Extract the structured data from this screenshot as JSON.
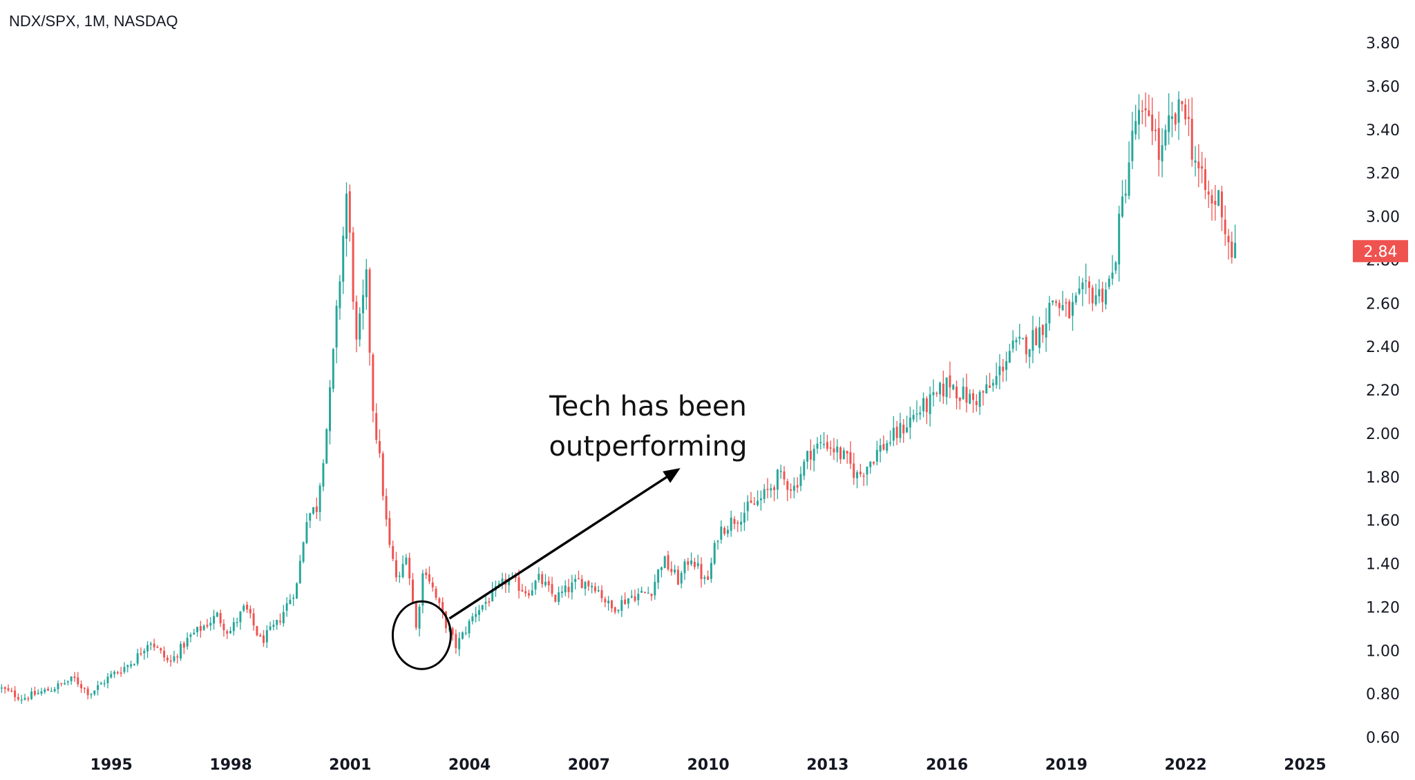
{
  "chart_data": {
    "type": "candlestick",
    "title": "NDX/SPX, 1M, NASDAQ",
    "xlabel": "",
    "ylabel": "",
    "ylim": [
      0.6,
      3.8
    ],
    "xlim": [
      1992.2,
      2026.2
    ],
    "y_ticks": [
      "3.80",
      "3.60",
      "3.40",
      "3.20",
      "3.00",
      "2.80",
      "2.60",
      "2.40",
      "2.20",
      "2.00",
      "1.80",
      "1.60",
      "1.40",
      "1.20",
      "1.00",
      "0.80",
      "0.60"
    ],
    "x_ticks": [
      "1995",
      "1998",
      "2001",
      "2004",
      "2007",
      "2010",
      "2013",
      "2016",
      "2019",
      "2022",
      "2025"
    ],
    "last_value": "2.84",
    "colors": {
      "up": "#26a69a",
      "down": "#ef5350",
      "label_bg": "#ef5350",
      "text": "#131722",
      "annotation": "#000000"
    },
    "annotation": {
      "lines": [
        "Tech has been",
        "outperforming"
      ],
      "circle_center": [
        2002.8,
        1.07
      ],
      "arrow_from": [
        2002.8,
        1.15
      ],
      "arrow_to": [
        2009.3,
        1.84
      ]
    },
    "anchors": [
      [
        1992.2,
        0.83
      ],
      [
        1992.8,
        0.78
      ],
      [
        1993.5,
        0.82
      ],
      [
        1994.1,
        0.87
      ],
      [
        1994.5,
        0.8
      ],
      [
        1995.0,
        0.88
      ],
      [
        1995.6,
        0.95
      ],
      [
        1996.0,
        1.05
      ],
      [
        1996.5,
        0.94
      ],
      [
        1997.0,
        1.06
      ],
      [
        1997.7,
        1.16
      ],
      [
        1998.0,
        1.08
      ],
      [
        1998.4,
        1.2
      ],
      [
        1998.8,
        1.04
      ],
      [
        1999.2,
        1.12
      ],
      [
        1999.7,
        1.3
      ],
      [
        1999.95,
        1.62
      ],
      [
        2000.2,
        1.66
      ],
      [
        2000.5,
        2.1
      ],
      [
        2000.75,
        2.65
      ],
      [
        2000.95,
        3.1
      ],
      [
        2001.05,
        2.85
      ],
      [
        2001.2,
        2.4
      ],
      [
        2001.45,
        2.7
      ],
      [
        2001.6,
        2.15
      ],
      [
        2001.8,
        1.85
      ],
      [
        2002.0,
        1.5
      ],
      [
        2002.25,
        1.3
      ],
      [
        2002.45,
        1.46
      ],
      [
        2002.7,
        1.1
      ],
      [
        2002.9,
        1.4
      ],
      [
        2003.2,
        1.24
      ],
      [
        2003.45,
        1.12
      ],
      [
        2003.7,
        1.02
      ],
      [
        2003.9,
        1.08
      ],
      [
        2004.2,
        1.18
      ],
      [
        2004.6,
        1.25
      ],
      [
        2005.0,
        1.33
      ],
      [
        2005.5,
        1.27
      ],
      [
        2005.8,
        1.33
      ],
      [
        2006.2,
        1.24
      ],
      [
        2006.8,
        1.32
      ],
      [
        2007.2,
        1.3
      ],
      [
        2007.6,
        1.19
      ],
      [
        2008.1,
        1.25
      ],
      [
        2008.6,
        1.27
      ],
      [
        2008.9,
        1.42
      ],
      [
        2009.3,
        1.32
      ],
      [
        2009.6,
        1.44
      ],
      [
        2010.0,
        1.3
      ],
      [
        2010.3,
        1.55
      ],
      [
        2010.8,
        1.62
      ],
      [
        2011.4,
        1.7
      ],
      [
        2011.8,
        1.8
      ],
      [
        2012.2,
        1.75
      ],
      [
        2012.6,
        1.92
      ],
      [
        2013.0,
        1.96
      ],
      [
        2013.5,
        1.88
      ],
      [
        2013.8,
        1.8
      ],
      [
        2014.3,
        1.92
      ],
      [
        2014.8,
        2.0
      ],
      [
        2015.3,
        2.1
      ],
      [
        2015.7,
        2.15
      ],
      [
        2016.1,
        2.24
      ],
      [
        2016.4,
        2.18
      ],
      [
        2016.7,
        2.15
      ],
      [
        2017.2,
        2.22
      ],
      [
        2017.6,
        2.38
      ],
      [
        2018.1,
        2.42
      ],
      [
        2018.4,
        2.48
      ],
      [
        2018.7,
        2.62
      ],
      [
        2019.1,
        2.55
      ],
      [
        2019.5,
        2.65
      ],
      [
        2019.9,
        2.64
      ],
      [
        2020.2,
        2.72
      ],
      [
        2020.4,
        3.0
      ],
      [
        2020.6,
        3.24
      ],
      [
        2020.8,
        3.46
      ],
      [
        2021.0,
        3.42
      ],
      [
        2021.15,
        3.5
      ],
      [
        2021.4,
        3.25
      ],
      [
        2021.6,
        3.4
      ],
      [
        2021.85,
        3.46
      ],
      [
        2022.0,
        3.55
      ],
      [
        2022.2,
        3.32
      ],
      [
        2022.45,
        3.15
      ],
      [
        2022.7,
        3.05
      ],
      [
        2022.9,
        3.1
      ],
      [
        2023.05,
        2.92
      ],
      [
        2023.2,
        2.84
      ]
    ]
  }
}
